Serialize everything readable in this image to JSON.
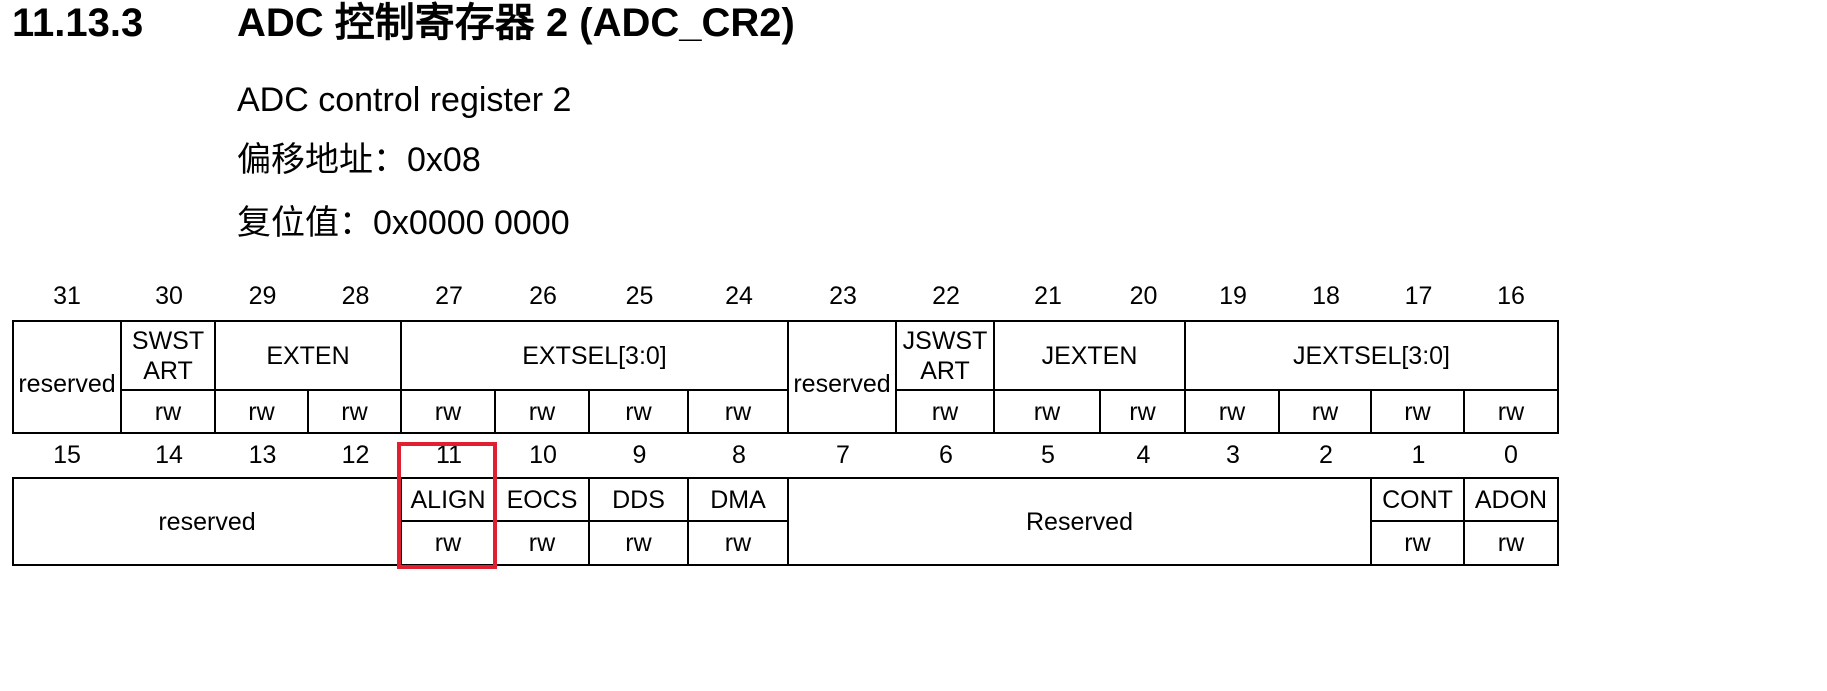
{
  "heading": {
    "number": "11.13.3",
    "title": "ADC 控制寄存器 2 (ADC_CR2)"
  },
  "subtitle": "ADC control register 2",
  "offset": {
    "label": "偏移地址：",
    "value": "0x08"
  },
  "reset": {
    "label": "复位值：",
    "value": "0x0000 0000"
  },
  "upper": {
    "bits": [
      "31",
      "30",
      "29",
      "28",
      "27",
      "26",
      "25",
      "24",
      "23",
      "22",
      "21",
      "20",
      "19",
      "18",
      "17",
      "16"
    ],
    "fields": [
      {
        "name": "reserved"
      },
      {
        "name": "SWST\nART",
        "access": "rw"
      },
      {
        "name": "EXTEN",
        "access": [
          "rw",
          "rw"
        ]
      },
      {
        "name": "EXTSEL[3:0]",
        "access": [
          "rw",
          "rw",
          "rw",
          "rw"
        ]
      },
      {
        "name": "reserved"
      },
      {
        "name": "JSWST\nART",
        "access": "rw"
      },
      {
        "name": "JEXTEN",
        "access": [
          "rw",
          "rw"
        ]
      },
      {
        "name": "JEXTSEL[3:0]",
        "access": [
          "rw",
          "rw",
          "rw",
          "rw"
        ]
      }
    ]
  },
  "lower": {
    "bits": [
      "15",
      "14",
      "13",
      "12",
      "11",
      "10",
      "9",
      "8",
      "7",
      "6",
      "5",
      "4",
      "3",
      "2",
      "1",
      "0"
    ],
    "fields": [
      {
        "name": "reserved"
      },
      {
        "name": "ALIGN",
        "access": "rw"
      },
      {
        "name": "EOCS",
        "access": "rw"
      },
      {
        "name": "DDS",
        "access": "rw"
      },
      {
        "name": "DMA",
        "access": "rw"
      },
      {
        "name": "Reserved"
      },
      {
        "name": "CONT",
        "access": "rw"
      },
      {
        "name": "ADON",
        "access": "rw"
      }
    ]
  },
  "highlight_color": "#e02030"
}
